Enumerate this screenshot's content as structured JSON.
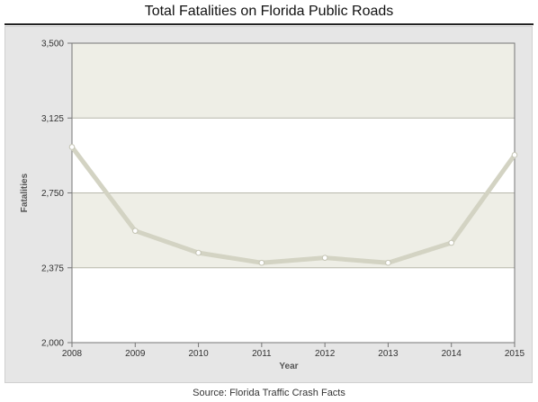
{
  "header": {
    "title": "Total Fatalities on Florida Public Roads"
  },
  "footer": {
    "source": "Source: Florida Traffic Crash Facts"
  },
  "colors": {
    "panel_background": "#e6e6e6",
    "band_shaded": "#eeeee6",
    "band_white": "#ffffff",
    "gridline": "#b8b8ac",
    "line": "#d3d3c3",
    "marker_fill": "#ffffff",
    "marker_stroke": "#c4c4b4"
  },
  "chart_data": {
    "type": "line",
    "title": "Total Fatalities on Florida Public Roads",
    "xlabel": "Year",
    "ylabel": "Fatalities",
    "x": [
      2008,
      2009,
      2010,
      2011,
      2012,
      2013,
      2014,
      2015
    ],
    "series": [
      {
        "values": [
          2980,
          2560,
          2450,
          2400,
          2425,
          2400,
          2500,
          2940
        ]
      }
    ],
    "yticks": [
      "2,000",
      "2,375",
      "2,750",
      "3,125",
      "3,500"
    ],
    "ytick_values": [
      2000,
      2375,
      2750,
      3125,
      3500
    ],
    "xticks": [
      "2008",
      "2009",
      "2010",
      "2011",
      "2012",
      "2013",
      "2014",
      "2015"
    ],
    "ylim": [
      2000,
      3500
    ],
    "xlim": [
      2008,
      2015
    ],
    "grid": true,
    "legend": "none",
    "background_bands": "alternating shaded/white between y gridlines"
  }
}
